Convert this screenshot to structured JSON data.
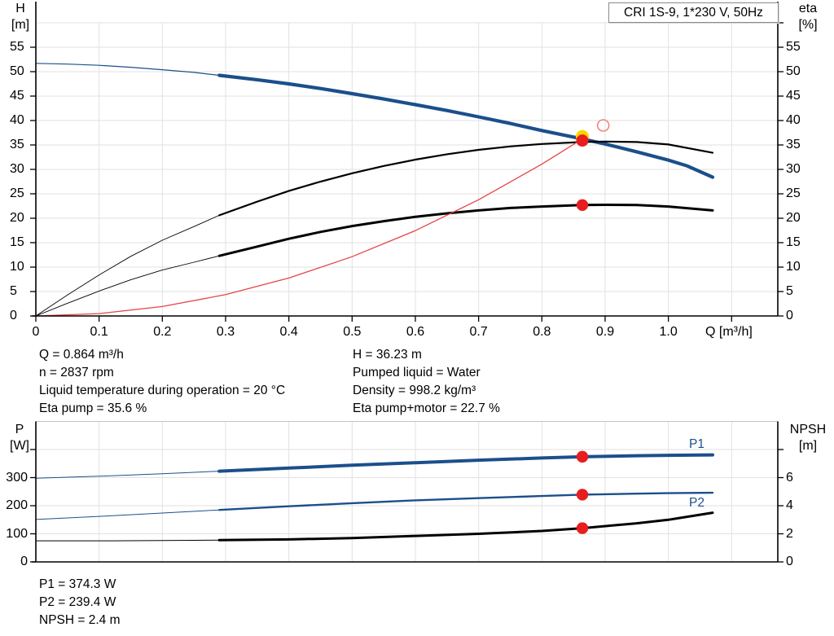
{
  "title_box": {
    "text": "CRI 1S-9, 1*230 V, 50Hz"
  },
  "colors": {
    "curve_blue": "#1b4f8b",
    "curve_black": "#000000",
    "curve_red": "#e64545",
    "dot_red": "#e81e1e",
    "halo_yellow": "#ffd400",
    "ring_red": "#f08484",
    "grid": "#e2e2e2",
    "axis": "#000000",
    "top_border_gray": "#c4c4c4"
  },
  "top_chart": {
    "left_axis_title": [
      "H",
      "[m]"
    ],
    "right_axis_title": [
      "eta",
      "[%]"
    ],
    "x_axis_label": "Q [m³/h]"
  },
  "bottom_chart": {
    "left_axis_title": [
      "P",
      "[W]"
    ],
    "right_axis_title": [
      "NPSH",
      "[m]"
    ],
    "curve_labels": {
      "p1": "P1",
      "p2": "P2"
    }
  },
  "annotations": {
    "top_left": [
      "Q = 0.864 m³/h",
      "n = 2837 rpm",
      "Liquid temperature during operation = 20 °C",
      "Eta pump = 35.6 %"
    ],
    "top_right": [
      "H = 36.23 m",
      "Pumped liquid = Water",
      "Density = 998.2 kg/m³",
      "Eta pump+motor = 22.7 %"
    ],
    "bottom": [
      "P1 = 374.3 W",
      "P2 = 239.4 W",
      "NPSH = 2.4 m"
    ]
  },
  "chart_data": [
    {
      "type": "line",
      "title": "CRI 1S-9, 1*230 V, 50Hz",
      "xlabel": "Q [m³/h]",
      "ylabel_left": "H [m]",
      "ylabel_right": "eta [%]",
      "xlim": [
        0,
        1.173
      ],
      "ylim_left": [
        0,
        60
      ],
      "ylim_right": [
        0,
        60
      ],
      "grid": true,
      "x_ticks": [
        "0",
        "0.1",
        "0.2",
        "0.3",
        "0.4",
        "0.5",
        "0.6",
        "0.7",
        "0.8",
        "0.9",
        "1.0"
      ],
      "y_ticks_left": [
        "0",
        "5",
        "10",
        "15",
        "20",
        "25",
        "30",
        "35",
        "40",
        "45",
        "50",
        "55"
      ],
      "y_ticks_right": [
        "0",
        "5",
        "10",
        "15",
        "20",
        "25",
        "30",
        "35",
        "40",
        "45",
        "50",
        "55"
      ],
      "series": [
        {
          "name": "head_curve",
          "axis": "left",
          "color_key": "curve_blue",
          "thick_from_x": 0.29,
          "points": [
            [
              0,
              51.7
            ],
            [
              0.05,
              51.55
            ],
            [
              0.1,
              51.3
            ],
            [
              0.15,
              50.9
            ],
            [
              0.2,
              50.4
            ],
            [
              0.25,
              49.85
            ],
            [
              0.29,
              49.25
            ],
            [
              0.35,
              48.35
            ],
            [
              0.4,
              47.5
            ],
            [
              0.45,
              46.55
            ],
            [
              0.5,
              45.5
            ],
            [
              0.55,
              44.4
            ],
            [
              0.6,
              43.25
            ],
            [
              0.65,
              42.05
            ],
            [
              0.7,
              40.75
            ],
            [
              0.75,
              39.4
            ],
            [
              0.8,
              37.95
            ],
            [
              0.864,
              36.23
            ],
            [
              0.9,
              35.2
            ],
            [
              0.95,
              33.6
            ],
            [
              1.0,
              31.9
            ],
            [
              1.03,
              30.7
            ],
            [
              1.07,
              28.4
            ]
          ]
        },
        {
          "name": "eta_pump_curve",
          "axis": "right",
          "color_key": "curve_black",
          "thick_from_x": 0.29,
          "points": [
            [
              0,
              0
            ],
            [
              0.05,
              4.3
            ],
            [
              0.1,
              8.4
            ],
            [
              0.15,
              12.2
            ],
            [
              0.2,
              15.5
            ],
            [
              0.25,
              18.3
            ],
            [
              0.29,
              20.6
            ],
            [
              0.35,
              23.4
            ],
            [
              0.4,
              25.6
            ],
            [
              0.45,
              27.5
            ],
            [
              0.5,
              29.2
            ],
            [
              0.55,
              30.7
            ],
            [
              0.6,
              32.0
            ],
            [
              0.65,
              33.1
            ],
            [
              0.7,
              34.0
            ],
            [
              0.75,
              34.7
            ],
            [
              0.8,
              35.2
            ],
            [
              0.864,
              35.6
            ],
            [
              0.9,
              35.7
            ],
            [
              0.95,
              35.6
            ],
            [
              1.0,
              35.1
            ],
            [
              1.07,
              33.4
            ]
          ]
        },
        {
          "name": "eta_pump_motor_curve",
          "axis": "right",
          "color_key": "curve_black",
          "thick_from_x": 0.29,
          "points": [
            [
              0,
              0
            ],
            [
              0.05,
              2.6
            ],
            [
              0.1,
              5.1
            ],
            [
              0.15,
              7.4
            ],
            [
              0.2,
              9.4
            ],
            [
              0.25,
              11.0
            ],
            [
              0.29,
              12.3
            ],
            [
              0.35,
              14.2
            ],
            [
              0.4,
              15.8
            ],
            [
              0.45,
              17.2
            ],
            [
              0.5,
              18.4
            ],
            [
              0.55,
              19.4
            ],
            [
              0.6,
              20.3
            ],
            [
              0.65,
              21.0
            ],
            [
              0.7,
              21.6
            ],
            [
              0.75,
              22.1
            ],
            [
              0.8,
              22.4
            ],
            [
              0.864,
              22.7
            ],
            [
              0.9,
              22.75
            ],
            [
              0.95,
              22.7
            ],
            [
              1.0,
              22.4
            ],
            [
              1.07,
              21.6
            ]
          ]
        },
        {
          "name": "system_curve",
          "axis": "left",
          "color_key": "curve_red",
          "points": [
            [
              0,
              0
            ],
            [
              0.1,
              0.49
            ],
            [
              0.2,
              1.94
            ],
            [
              0.3,
              4.37
            ],
            [
              0.4,
              7.77
            ],
            [
              0.5,
              12.13
            ],
            [
              0.6,
              17.47
            ],
            [
              0.7,
              23.78
            ],
            [
              0.8,
              31.06
            ],
            [
              0.864,
              36.23
            ]
          ]
        }
      ],
      "markers": [
        {
          "name": "rated-point-halo",
          "x": 0.864,
          "y": 36.23,
          "axis": "left",
          "style": "halo",
          "color_key": "halo_yellow"
        },
        {
          "name": "duty-point-head",
          "x": 0.864,
          "y": 36.23,
          "axis": "left",
          "style": "dot",
          "color_key": "dot_red"
        },
        {
          "name": "secondary-point-ring",
          "x": 0.897,
          "y": 39.0,
          "axis": "left",
          "style": "ring",
          "color_key": "ring_red"
        },
        {
          "name": "duty-point-eta",
          "x": 0.864,
          "y": 22.7,
          "axis": "right",
          "style": "dot",
          "color_key": "dot_red"
        }
      ]
    },
    {
      "type": "line",
      "title": "",
      "xlabel": "Q [m³/h]",
      "ylabel_left": "P [W]",
      "ylabel_right": "NPSH [m]",
      "xlim": [
        0,
        1.173
      ],
      "ylim_left": [
        0,
        500
      ],
      "ylim_right": [
        0,
        10
      ],
      "grid": true,
      "y_ticks_left": [
        "0",
        "100",
        "200",
        "300"
      ],
      "y_ticks_right": [
        "0",
        "2",
        "4",
        "6"
      ],
      "series": [
        {
          "name": "p1_curve",
          "axis": "left",
          "color_key": "curve_blue",
          "thick_from_x": 0.29,
          "label": "P1",
          "points": [
            [
              0,
              298
            ],
            [
              0.1,
              305
            ],
            [
              0.2,
              314
            ],
            [
              0.29,
              323
            ],
            [
              0.4,
              334
            ],
            [
              0.5,
              344
            ],
            [
              0.6,
              353
            ],
            [
              0.7,
              362
            ],
            [
              0.8,
              370
            ],
            [
              0.864,
              374.3
            ],
            [
              0.95,
              378
            ],
            [
              1.0,
              379.5
            ],
            [
              1.07,
              381
            ]
          ]
        },
        {
          "name": "p2_curve",
          "axis": "left",
          "color_key": "curve_blue",
          "thick_from_x": 0.29,
          "label": "P2",
          "points": [
            [
              0,
              151
            ],
            [
              0.1,
              162
            ],
            [
              0.2,
              174
            ],
            [
              0.29,
              185
            ],
            [
              0.4,
              198
            ],
            [
              0.5,
              209
            ],
            [
              0.6,
              219
            ],
            [
              0.7,
              227
            ],
            [
              0.8,
              234.5
            ],
            [
              0.864,
              239.4
            ],
            [
              0.95,
              243
            ],
            [
              1.0,
              244.5
            ],
            [
              1.07,
              246
            ]
          ]
        },
        {
          "name": "npsh_curve",
          "axis": "right",
          "color_key": "curve_black",
          "thick_from_x": 0.29,
          "points": [
            [
              0,
              1.5
            ],
            [
              0.12,
              1.5
            ],
            [
              0.2,
              1.52
            ],
            [
              0.29,
              1.55
            ],
            [
              0.4,
              1.6
            ],
            [
              0.5,
              1.7
            ],
            [
              0.6,
              1.85
            ],
            [
              0.7,
              2.0
            ],
            [
              0.8,
              2.2
            ],
            [
              0.864,
              2.4
            ],
            [
              0.95,
              2.75
            ],
            [
              1.0,
              3.0
            ],
            [
              1.07,
              3.5
            ]
          ]
        }
      ],
      "markers": [
        {
          "name": "duty-point-p1",
          "x": 0.864,
          "y": 374.3,
          "axis": "left",
          "style": "dot",
          "color_key": "dot_red"
        },
        {
          "name": "duty-point-p2",
          "x": 0.864,
          "y": 239.4,
          "axis": "left",
          "style": "dot",
          "color_key": "dot_red"
        },
        {
          "name": "duty-point-npsh",
          "x": 0.864,
          "y": 2.4,
          "axis": "right",
          "style": "dot",
          "color_key": "dot_red"
        }
      ]
    }
  ]
}
